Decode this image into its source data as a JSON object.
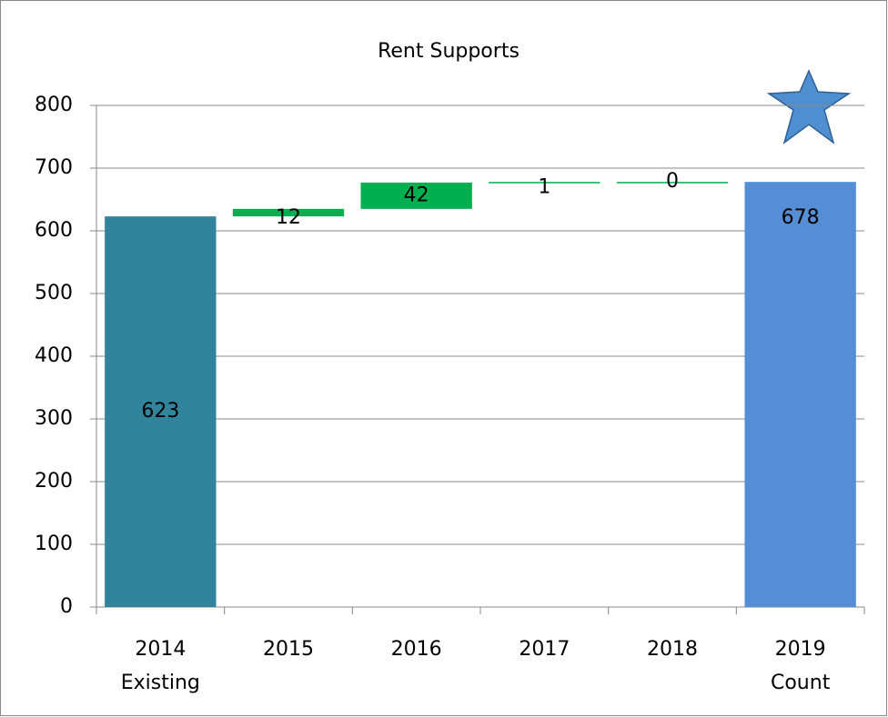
{
  "chart_data": {
    "type": "waterfall",
    "title": "Rent Supports",
    "categories": [
      [
        "2014",
        "Existing"
      ],
      [
        "2015"
      ],
      [
        "2016"
      ],
      [
        "2017"
      ],
      [
        "2018"
      ],
      [
        "2019",
        "Count"
      ]
    ],
    "values": [
      623,
      12,
      42,
      1,
      0,
      678
    ],
    "total": [
      true,
      false,
      false,
      false,
      false,
      true
    ],
    "colors": [
      "#31849b",
      "#00b050",
      "#00b050",
      "#00b050",
      "#00b050",
      "#558ed5"
    ],
    "ylim": [
      0,
      800
    ],
    "yticks": [
      0,
      100,
      200,
      300,
      400,
      500,
      600,
      700,
      800
    ],
    "grid": true
  }
}
